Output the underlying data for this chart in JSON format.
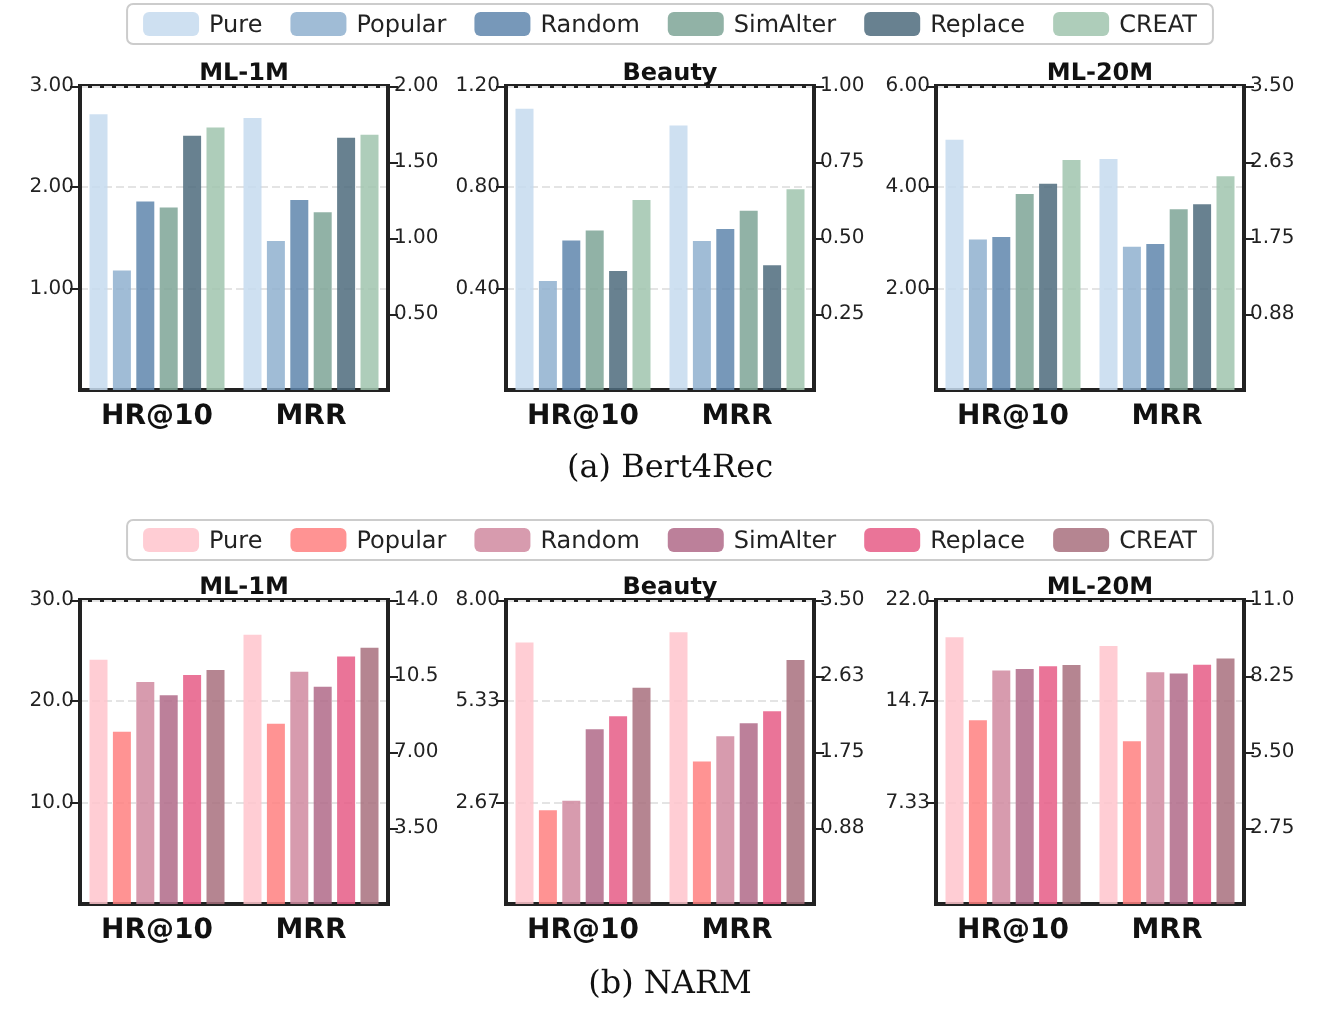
{
  "chart_data": [
    {
      "type": "bar",
      "title": "ML-1M",
      "categories": [
        "HR@10",
        "MRR"
      ],
      "legend": "top",
      "grid": "y",
      "annotations": [
        "(a) Bert4Rec"
      ],
      "ylim": [
        0,
        3
      ],
      "yticks": [
        {
          "value": 1,
          "label": "1.00"
        },
        {
          "value": 2,
          "label": "2.00"
        },
        {
          "value": 3,
          "label": "3.00"
        }
      ],
      "y2lim": [
        0,
        2
      ],
      "y2ticks": [
        {
          "value": 0.5,
          "label": "0.50"
        },
        {
          "value": 1,
          "label": "1.00"
        },
        {
          "value": 1.5,
          "label": "1.50"
        },
        {
          "value": 2,
          "label": "2.00"
        }
      ],
      "series": [
        {
          "name": "Pure",
          "color": "#c6dbee",
          "values": [
            2.72,
            null
          ]
        },
        {
          "name": "Popular",
          "color": "#8fb0cf",
          "values": [
            1.18,
            null
          ]
        },
        {
          "name": "Random",
          "color": "#5f86ad",
          "values": [
            1.86,
            null
          ]
        },
        {
          "name": "SimAlter",
          "color": "#7ea597",
          "values": [
            1.8,
            null
          ]
        },
        {
          "name": "Replace",
          "color": "#4d6b7d",
          "values": [
            2.51,
            null
          ]
        },
        {
          "name": "CREAT",
          "color": "#a0c4ae",
          "values": [
            2.59,
            null
          ]
        },
        {
          "axis": "y2",
          "color": "#c6dbee",
          "values": [
            null,
            1.79
          ]
        },
        {
          "axis": "y2",
          "color": "#8fb0cf",
          "values": [
            null,
            0.98
          ]
        },
        {
          "axis": "y2",
          "color": "#5f86ad",
          "values": [
            null,
            1.25
          ]
        },
        {
          "axis": "y2",
          "color": "#7ea597",
          "values": [
            null,
            1.17
          ]
        },
        {
          "axis": "y2",
          "color": "#4d6b7d",
          "values": [
            null,
            1.66
          ]
        },
        {
          "axis": "y2",
          "color": "#a0c4ae",
          "values": [
            null,
            1.68
          ]
        }
      ]
    },
    {
      "type": "bar",
      "title": "Beauty",
      "categories": [
        "HR@10",
        "MRR"
      ],
      "grid": "y",
      "ylim": [
        0,
        1.2
      ],
      "yticks": [
        {
          "value": 0.4,
          "label": "0.40"
        },
        {
          "value": 0.8,
          "label": "0.80"
        },
        {
          "value": 1.2,
          "label": "1.20"
        }
      ],
      "y2lim": [
        0,
        1
      ],
      "y2ticks": [
        {
          "value": 0.25,
          "label": "0.25"
        },
        {
          "value": 0.5,
          "label": "0.50"
        },
        {
          "value": 0.75,
          "label": "0.75"
        },
        {
          "value": 1,
          "label": "1.00"
        }
      ],
      "series": [
        {
          "color": "#c6dbee",
          "values": [
            1.11,
            null
          ]
        },
        {
          "color": "#8fb0cf",
          "values": [
            0.43,
            null
          ]
        },
        {
          "color": "#5f86ad",
          "values": [
            0.59,
            null
          ]
        },
        {
          "color": "#7ea597",
          "values": [
            0.63,
            null
          ]
        },
        {
          "color": "#4d6b7d",
          "values": [
            0.47,
            null
          ]
        },
        {
          "color": "#a0c4ae",
          "values": [
            0.75,
            null
          ]
        },
        {
          "axis": "y2",
          "color": "#c6dbee",
          "values": [
            null,
            0.87
          ]
        },
        {
          "axis": "y2",
          "color": "#8fb0cf",
          "values": [
            null,
            0.49
          ]
        },
        {
          "axis": "y2",
          "color": "#5f86ad",
          "values": [
            null,
            0.53
          ]
        },
        {
          "axis": "y2",
          "color": "#7ea597",
          "values": [
            null,
            0.59
          ]
        },
        {
          "axis": "y2",
          "color": "#4d6b7d",
          "values": [
            null,
            0.41
          ]
        },
        {
          "axis": "y2",
          "color": "#a0c4ae",
          "values": [
            null,
            0.66
          ]
        }
      ]
    },
    {
      "type": "bar",
      "title": "ML-20M",
      "categories": [
        "HR@10",
        "MRR"
      ],
      "grid": "y",
      "ylim": [
        0,
        6
      ],
      "yticks": [
        {
          "value": 2,
          "label": "2.00"
        },
        {
          "value": 4,
          "label": "4.00"
        },
        {
          "value": 6,
          "label": "6.00"
        }
      ],
      "y2lim": [
        0,
        3.5
      ],
      "y2ticks": [
        {
          "value": 0.875,
          "label": "0.88"
        },
        {
          "value": 1.75,
          "label": "1.75"
        },
        {
          "value": 2.625,
          "label": "2.63"
        },
        {
          "value": 3.5,
          "label": "3.50"
        }
      ],
      "series": [
        {
          "color": "#c6dbee",
          "values": [
            4.94,
            null
          ]
        },
        {
          "color": "#8fb0cf",
          "values": [
            2.97,
            null
          ]
        },
        {
          "color": "#5f86ad",
          "values": [
            3.02,
            null
          ]
        },
        {
          "color": "#7ea597",
          "values": [
            3.87,
            null
          ]
        },
        {
          "color": "#4d6b7d",
          "values": [
            4.07,
            null
          ]
        },
        {
          "color": "#a0c4ae",
          "values": [
            4.54,
            null
          ]
        },
        {
          "axis": "y2",
          "color": "#c6dbee",
          "values": [
            null,
            2.66
          ]
        },
        {
          "axis": "y2",
          "color": "#8fb0cf",
          "values": [
            null,
            1.65
          ]
        },
        {
          "axis": "y2",
          "color": "#5f86ad",
          "values": [
            null,
            1.68
          ]
        },
        {
          "axis": "y2",
          "color": "#7ea597",
          "values": [
            null,
            2.08
          ]
        },
        {
          "axis": "y2",
          "color": "#4d6b7d",
          "values": [
            null,
            2.14
          ]
        },
        {
          "axis": "y2",
          "color": "#a0c4ae",
          "values": [
            null,
            2.46
          ]
        }
      ]
    },
    {
      "type": "bar",
      "title": "ML-1M",
      "categories": [
        "HR@10",
        "MRR"
      ],
      "legend": "top",
      "grid": "y",
      "annotations": [
        "(b) NARM"
      ],
      "ylim": [
        0,
        30
      ],
      "yticks": [
        {
          "value": 10,
          "label": "10.0"
        },
        {
          "value": 20,
          "label": "20.0"
        },
        {
          "value": 30,
          "label": "30.0"
        }
      ],
      "y2lim": [
        0,
        14
      ],
      "y2ticks": [
        {
          "value": 3.5,
          "label": "3.50"
        },
        {
          "value": 7,
          "label": "7.00"
        },
        {
          "value": 10.5,
          "label": "10.5"
        },
        {
          "value": 14,
          "label": "14.0"
        }
      ],
      "series": [
        {
          "name": "Pure",
          "color": "#ffc4cc",
          "values": [
            24.1,
            null
          ]
        },
        {
          "name": "Popular",
          "color": "#ff8080",
          "values": [
            17.0,
            null
          ]
        },
        {
          "name": "Random",
          "color": "#d08aa0",
          "values": [
            21.9,
            null
          ]
        },
        {
          "name": "SimAlter",
          "color": "#b06a88",
          "values": [
            20.6,
            null
          ]
        },
        {
          "name": "Replace",
          "color": "#e65c86",
          "values": [
            22.6,
            null
          ]
        },
        {
          "name": "CREAT",
          "color": "#a8707e",
          "values": [
            23.1,
            null
          ]
        },
        {
          "axis": "y2",
          "color": "#ffc4cc",
          "values": [
            null,
            12.4
          ]
        },
        {
          "axis": "y2",
          "color": "#ff8080",
          "values": [
            null,
            8.3
          ]
        },
        {
          "axis": "y2",
          "color": "#d08aa0",
          "values": [
            null,
            10.7
          ]
        },
        {
          "axis": "y2",
          "color": "#b06a88",
          "values": [
            null,
            10.0
          ]
        },
        {
          "axis": "y2",
          "color": "#e65c86",
          "values": [
            null,
            11.4
          ]
        },
        {
          "axis": "y2",
          "color": "#a8707e",
          "values": [
            null,
            11.8
          ]
        }
      ]
    },
    {
      "type": "bar",
      "title": "Beauty",
      "categories": [
        "HR@10",
        "MRR"
      ],
      "grid": "y",
      "ylim": [
        0,
        8
      ],
      "yticks": [
        {
          "value": 2.6667,
          "label": "2.67"
        },
        {
          "value": 5.3333,
          "label": "5.33"
        },
        {
          "value": 8,
          "label": "8.00"
        }
      ],
      "y2lim": [
        0,
        3.5
      ],
      "y2ticks": [
        {
          "value": 0.875,
          "label": "0.88"
        },
        {
          "value": 1.75,
          "label": "1.75"
        },
        {
          "value": 2.625,
          "label": "2.63"
        },
        {
          "value": 3.5,
          "label": "3.50"
        }
      ],
      "series": [
        {
          "color": "#ffc4cc",
          "values": [
            6.88,
            null
          ]
        },
        {
          "color": "#ff8080",
          "values": [
            2.47,
            null
          ]
        },
        {
          "color": "#d08aa0",
          "values": [
            2.72,
            null
          ]
        },
        {
          "color": "#b06a88",
          "values": [
            4.6,
            null
          ]
        },
        {
          "color": "#e65c86",
          "values": [
            4.94,
            null
          ]
        },
        {
          "color": "#a8707e",
          "values": [
            5.69,
            null
          ]
        },
        {
          "axis": "y2",
          "color": "#ffc4cc",
          "values": [
            null,
            3.13
          ]
        },
        {
          "axis": "y2",
          "color": "#ff8080",
          "values": [
            null,
            1.64
          ]
        },
        {
          "axis": "y2",
          "color": "#d08aa0",
          "values": [
            null,
            1.93
          ]
        },
        {
          "axis": "y2",
          "color": "#b06a88",
          "values": [
            null,
            2.08
          ]
        },
        {
          "axis": "y2",
          "color": "#e65c86",
          "values": [
            null,
            2.22
          ]
        },
        {
          "axis": "y2",
          "color": "#a8707e",
          "values": [
            null,
            2.81
          ]
        }
      ]
    },
    {
      "type": "bar",
      "title": "ML-20M",
      "categories": [
        "HR@10",
        "MRR"
      ],
      "grid": "y",
      "ylim": [
        0,
        22
      ],
      "yticks": [
        {
          "value": 7.3333,
          "label": "7.33"
        },
        {
          "value": 14.6667,
          "label": "14.7"
        },
        {
          "value": 22,
          "label": "22.0"
        }
      ],
      "y2lim": [
        0,
        11
      ],
      "y2ticks": [
        {
          "value": 2.75,
          "label": "2.75"
        },
        {
          "value": 5.5,
          "label": "5.50"
        },
        {
          "value": 8.25,
          "label": "8.25"
        },
        {
          "value": 11,
          "label": "11.0"
        }
      ],
      "series": [
        {
          "color": "#ffc4cc",
          "values": [
            19.3,
            null
          ]
        },
        {
          "color": "#ff8080",
          "values": [
            13.3,
            null
          ]
        },
        {
          "color": "#d08aa0",
          "values": [
            16.9,
            null
          ]
        },
        {
          "color": "#b06a88",
          "values": [
            17.0,
            null
          ]
        },
        {
          "color": "#e65c86",
          "values": [
            17.2,
            null
          ]
        },
        {
          "color": "#a8707e",
          "values": [
            17.3,
            null
          ]
        },
        {
          "axis": "y2",
          "color": "#ffc4cc",
          "values": [
            null,
            9.34
          ]
        },
        {
          "axis": "y2",
          "color": "#ff8080",
          "values": [
            null,
            5.89
          ]
        },
        {
          "axis": "y2",
          "color": "#d08aa0",
          "values": [
            null,
            8.39
          ]
        },
        {
          "axis": "y2",
          "color": "#b06a88",
          "values": [
            null,
            8.34
          ]
        },
        {
          "axis": "y2",
          "color": "#e65c86",
          "values": [
            null,
            8.66
          ]
        },
        {
          "axis": "y2",
          "color": "#a8707e",
          "values": [
            null,
            8.88
          ]
        }
      ]
    }
  ]
}
